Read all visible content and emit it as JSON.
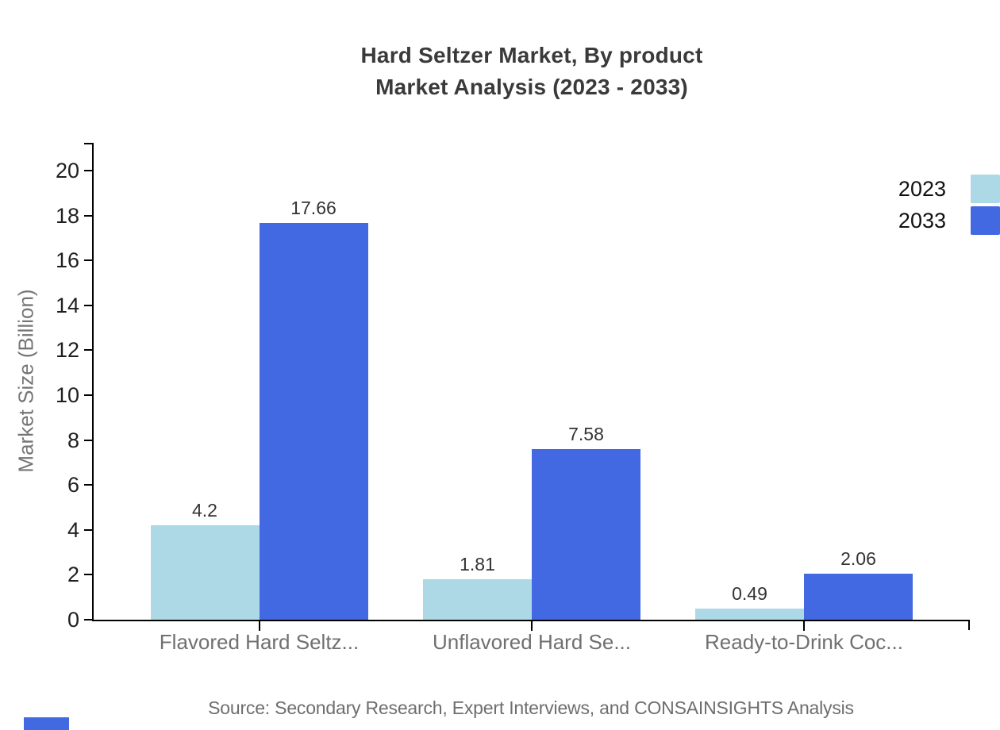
{
  "title": {
    "line1": "Hard Seltzer Market, By product",
    "line2": "Market Analysis (2023 - 2033)"
  },
  "y_axis": {
    "label": "Market Size (Billion)",
    "tick_values": [
      0,
      2,
      4,
      6,
      8,
      10,
      12,
      14,
      16,
      18,
      20
    ]
  },
  "legend": {
    "items": [
      {
        "label": "2023",
        "color": "#ADD8E6"
      },
      {
        "label": "2033",
        "color": "#4268E2"
      }
    ]
  },
  "footer": {
    "source_text": "Source: Secondary Research, Expert Interviews, and CONSAINSIGHTS Analysis"
  },
  "colors": {
    "series_2023": "#ADD8E6",
    "series_2033": "#4268E2",
    "axis": "#000000",
    "title_text": "#3a3a3a",
    "tick_label": "#1f1f1f",
    "value_label": "#333333",
    "category_label": "#707070",
    "muted_text": "#6e6e6e"
  },
  "chart_data": {
    "type": "bar",
    "title": "Hard Seltzer Market, By product Market Analysis (2023 - 2033)",
    "categories": [
      "Flavored Hard Seltz...",
      "Unflavored Hard Se...",
      "Ready-to-Drink Coc..."
    ],
    "series": [
      {
        "name": "2023",
        "color": "#ADD8E6",
        "values": [
          4.2,
          1.81,
          0.49
        ]
      },
      {
        "name": "2033",
        "color": "#4268E2",
        "values": [
          17.66,
          7.58,
          2.06
        ]
      }
    ],
    "value_labels": [
      [
        "4.2",
        "1.81",
        "0.49"
      ],
      [
        "17.66",
        "7.58",
        "2.06"
      ]
    ],
    "xlabel": "",
    "ylabel": "Market Size (Billion)",
    "ylim": [
      0,
      20
    ],
    "ytick_step": 2,
    "grid": false,
    "legend_position": "top-right"
  }
}
